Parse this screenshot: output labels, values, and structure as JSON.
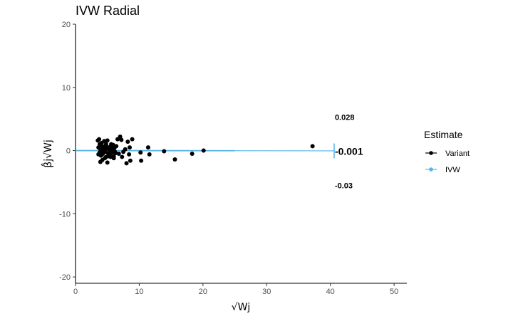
{
  "chart_data": {
    "type": "scatter",
    "title": "IVW Radial",
    "xlabel": "√Wj",
    "ylabel": "β̂j√Wj",
    "xlim": [
      0,
      52
    ],
    "ylim": [
      -21,
      20
    ],
    "x_ticks": [
      0,
      10,
      20,
      30,
      40,
      50
    ],
    "y_ticks": [
      -20,
      -10,
      0,
      10,
      20
    ],
    "grid": false,
    "legend": {
      "title": "Estimate",
      "position": "right",
      "entries": [
        {
          "label": "Variant",
          "color": "#000000"
        },
        {
          "label": "IVW",
          "color": "#56B4E9"
        }
      ]
    },
    "series": [
      {
        "name": "Variant",
        "color": "#000000",
        "points": [
          [
            3.5,
            1.6
          ],
          [
            3.7,
            1.8
          ],
          [
            3.6,
            0.5
          ],
          [
            3.8,
            -0.3
          ],
          [
            3.9,
            0.2
          ],
          [
            4.0,
            -0.8
          ],
          [
            4.1,
            1.2
          ],
          [
            4.2,
            0.6
          ],
          [
            4.3,
            -0.5
          ],
          [
            4.4,
            0.4
          ],
          [
            4.5,
            1.5
          ],
          [
            4.6,
            -0.2
          ],
          [
            4.7,
            0.8
          ],
          [
            4.8,
            -1.0
          ],
          [
            4.9,
            0.3
          ],
          [
            5.0,
            1.6
          ],
          [
            5.1,
            -0.4
          ],
          [
            5.2,
            0.5
          ],
          [
            5.3,
            0.1
          ],
          [
            5.4,
            -0.7
          ],
          [
            5.5,
            0.6
          ],
          [
            5.6,
            1.0
          ],
          [
            5.7,
            -0.3
          ],
          [
            5.8,
            0.2
          ],
          [
            5.9,
            0.9
          ],
          [
            6.0,
            -0.9
          ],
          [
            6.1,
            0.4
          ],
          [
            6.2,
            -0.2
          ],
          [
            3.9,
            -1.8
          ],
          [
            4.2,
            -1.5
          ],
          [
            4.6,
            -1.2
          ],
          [
            5.0,
            -1.9
          ],
          [
            5.5,
            -1.0
          ],
          [
            6.0,
            -1.2
          ],
          [
            6.4,
            0.7
          ],
          [
            6.6,
            1.8
          ],
          [
            6.8,
            -0.5
          ],
          [
            7.0,
            2.2
          ],
          [
            7.2,
            1.7
          ],
          [
            7.5,
            -0.2
          ],
          [
            7.8,
            0.2
          ],
          [
            8.0,
            -2.0
          ],
          [
            8.2,
            1.4
          ],
          [
            8.4,
            -0.6
          ],
          [
            8.5,
            0.5
          ],
          [
            8.6,
            -1.6
          ],
          [
            8.9,
            1.8
          ],
          [
            10.2,
            -0.3
          ],
          [
            10.3,
            -1.6
          ],
          [
            11.4,
            0.5
          ],
          [
            11.6,
            -0.6
          ],
          [
            13.9,
            -0.1
          ],
          [
            15.6,
            -1.4
          ],
          [
            18.3,
            -0.5
          ],
          [
            20.1,
            0.0
          ],
          [
            37.2,
            0.7
          ],
          [
            3.6,
            -0.6
          ],
          [
            4.0,
            0.0
          ],
          [
            4.4,
            -0.1
          ],
          [
            5.2,
            -0.9
          ],
          [
            5.7,
            0.7
          ],
          [
            6.3,
            -0.4
          ],
          [
            7.3,
            -1.0
          ],
          [
            3.8,
            1.0
          ],
          [
            4.8,
            1.0
          ]
        ]
      },
      {
        "name": "IVW",
        "color": "#56B4E9",
        "line": {
          "x": [
            0,
            25
          ],
          "slope": -0.001
        },
        "arc": {
          "radius": 40.6,
          "range": [
            -0.03,
            0.028
          ]
        }
      }
    ],
    "annotations": [
      {
        "text": "0.028",
        "x": 40.7,
        "y": 5.3,
        "size": "small"
      },
      {
        "text": "-0.001",
        "x": 40.7,
        "y": -0.1,
        "size": "big"
      },
      {
        "text": "-0.03",
        "x": 40.7,
        "y": -5.5,
        "size": "small"
      }
    ]
  }
}
